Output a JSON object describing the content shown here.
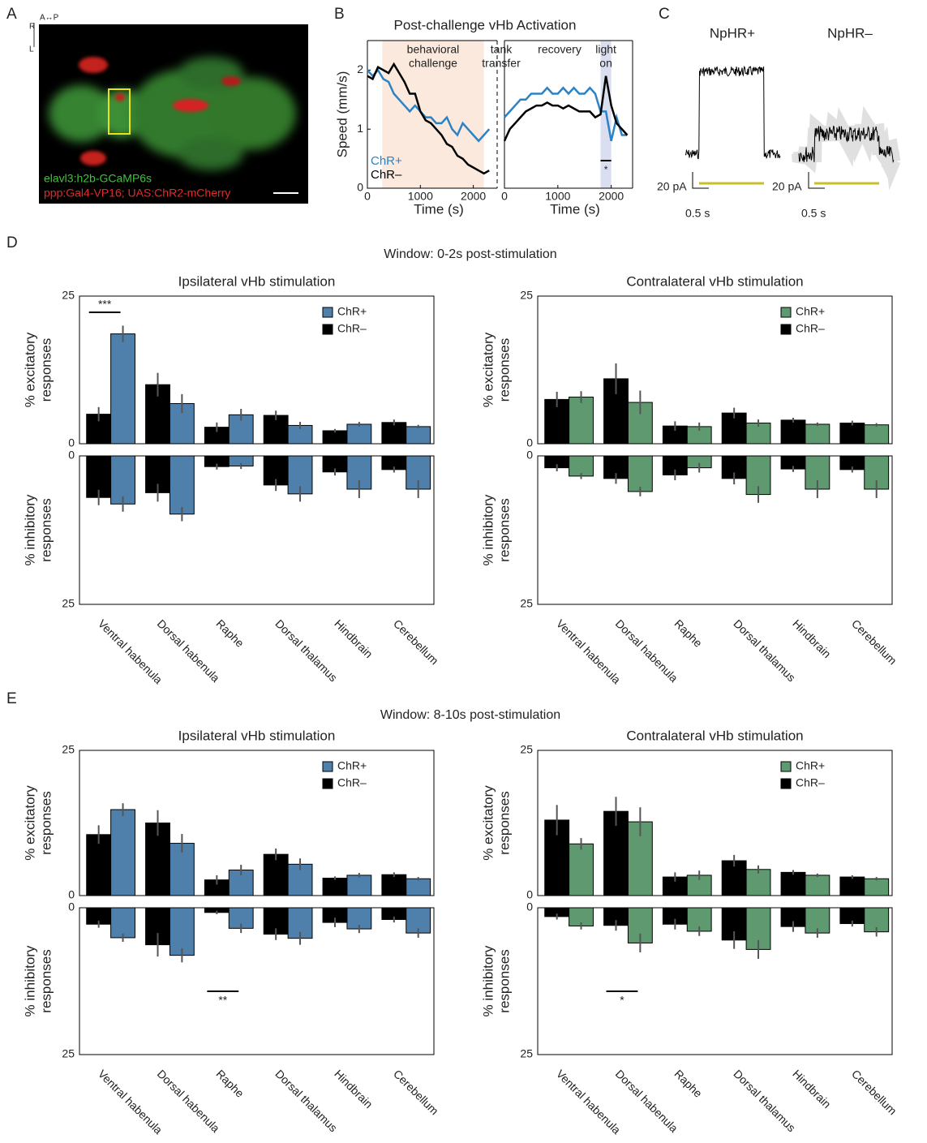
{
  "panel_labels": [
    "A",
    "B",
    "C",
    "D",
    "E"
  ],
  "image": {
    "orientation": [
      "A↔P",
      "R",
      "L"
    ],
    "labels": [
      "elavl3:h2b-GCaMP6s",
      "ppp:Gal4-VP16; UAS:ChR2-mCherry"
    ]
  },
  "traces": {
    "titles": [
      "NpHR+",
      "NpHR–"
    ],
    "scale_y": "20 pA",
    "scale_x": "0.5 s"
  },
  "windows": [
    "Window: 0-2s post-stimulation",
    "Window: 8-10s post-stimulation"
  ],
  "chart_data": [
    {
      "type": "line",
      "title": "Post-challenge vHb Activation",
      "ylabel": "Speed (mm/s)",
      "xlabel": "Time (s)",
      "xlim": [
        0,
        2450
      ],
      "xticks": [
        0,
        1000,
        2000
      ],
      "ylim": [
        0,
        2.5
      ],
      "yticks": [
        0,
        1,
        2
      ],
      "x": [
        0,
        100,
        200,
        300,
        400,
        500,
        600,
        700,
        800,
        900,
        1000,
        1100,
        1200,
        1300,
        1400,
        1500,
        1600,
        1700,
        1800,
        1900,
        2000,
        2100,
        2200,
        2300
      ],
      "series": [
        {
          "name": "ChR+",
          "color": "#2b83c6",
          "values": [
            2.0,
            1.9,
            2.0,
            1.85,
            1.8,
            1.6,
            1.5,
            1.4,
            1.3,
            1.4,
            1.3,
            1.2,
            1.2,
            1.1,
            1.1,
            1.2,
            1.0,
            0.9,
            1.1,
            1.0,
            0.9,
            0.8,
            0.9,
            1.0
          ]
        },
        {
          "name": "ChR–",
          "color": "#000000",
          "values": [
            1.9,
            1.85,
            2.05,
            2.0,
            1.95,
            2.1,
            1.95,
            1.8,
            1.6,
            1.6,
            1.3,
            1.15,
            1.1,
            1.0,
            0.9,
            0.75,
            0.7,
            0.55,
            0.5,
            0.4,
            0.35,
            0.3,
            0.25,
            0.3
          ]
        }
      ],
      "regions": [
        {
          "lines": [
            "behavioral",
            "challenge"
          ],
          "xlim": [
            280,
            2200
          ],
          "color": "#fce9dd"
        }
      ]
    },
    {
      "type": "line",
      "xlabel": "Time (s)",
      "xlim": [
        0,
        2400
      ],
      "xticks": [
        0,
        1000,
        2000
      ],
      "ylim": [
        0,
        2.5
      ],
      "x": [
        0,
        100,
        200,
        300,
        400,
        500,
        600,
        700,
        800,
        900,
        1000,
        1100,
        1200,
        1300,
        1400,
        1500,
        1600,
        1700,
        1800,
        1900,
        2000,
        2100,
        2200,
        2300
      ],
      "series": [
        {
          "color": "#2b83c6",
          "values": [
            1.2,
            1.3,
            1.4,
            1.5,
            1.5,
            1.6,
            1.6,
            1.6,
            1.7,
            1.6,
            1.6,
            1.7,
            1.6,
            1.7,
            1.6,
            1.6,
            1.7,
            1.6,
            1.3,
            1.3,
            0.8,
            1.2,
            0.9,
            0.9
          ]
        },
        {
          "color": "#000000",
          "values": [
            0.8,
            1.0,
            1.1,
            1.2,
            1.3,
            1.35,
            1.4,
            1.4,
            1.45,
            1.4,
            1.4,
            1.35,
            1.4,
            1.35,
            1.3,
            1.3,
            1.3,
            1.2,
            1.25,
            1.9,
            1.4,
            1.1,
            1.0,
            0.9
          ]
        }
      ],
      "annotations": [
        {
          "lines": [
            "tank",
            "transfer"
          ]
        },
        {
          "lines": [
            "recovery"
          ]
        }
      ],
      "regions": [
        {
          "lines": [
            "light",
            "on"
          ],
          "xlim": [
            1800,
            2000
          ],
          "color": "#d9def0"
        }
      ],
      "significance": [
        {
          "label": "*",
          "xlim": [
            1800,
            2000
          ]
        }
      ]
    },
    {
      "type": "bar",
      "title": "Ipsilateral vHb stimulation",
      "ylabel": [
        "% excitatory",
        "responses"
      ],
      "y2label": [
        "% inhibitory",
        "responses"
      ],
      "categories": [
        "Ventral habenula",
        "Dorsal habenula",
        "Raphe",
        "Dorsal thalamus",
        "Hindbrain",
        "Cerebellum"
      ],
      "ylim": [
        0,
        25
      ],
      "yticks": [
        0,
        25
      ],
      "y2lim": [
        0,
        25
      ],
      "y2ticks": [
        0,
        25
      ],
      "series": [
        {
          "name": "ChR+",
          "color": "#4f80ab",
          "values": [
            18.6,
            6.8,
            4.9,
            3.1,
            3.3,
            2.9
          ],
          "errors": [
            1.4,
            1.6,
            1.0,
            0.6,
            0.4,
            0.3
          ],
          "inhibitory_values": [
            8.1,
            9.8,
            1.7,
            6.4,
            5.6,
            5.6
          ],
          "inhibitory_errors": [
            1.3,
            1.2,
            0.5,
            1.3,
            1.5,
            1.5
          ]
        },
        {
          "name": "ChR–",
          "color": "#000000",
          "values": [
            5.0,
            10.0,
            2.8,
            4.8,
            2.2,
            3.6
          ],
          "errors": [
            1.2,
            2.0,
            0.8,
            0.8,
            0.3,
            0.5
          ],
          "inhibitory_values": [
            7.0,
            6.2,
            1.8,
            4.9,
            2.7,
            2.3
          ],
          "inhibitory_errors": [
            1.3,
            1.5,
            0.5,
            1.0,
            0.6,
            0.5
          ]
        }
      ],
      "significance": [
        {
          "label": "***",
          "category": 0,
          "panel": "excitatory"
        }
      ]
    },
    {
      "type": "bar",
      "title": "Contralateral vHb stimulation",
      "ylabel": [
        "% excitatory",
        "responses"
      ],
      "y2label": [
        "% inhibitory",
        "responses"
      ],
      "categories": [
        "Ventral habenula",
        "Dorsal habenula",
        "Raphe",
        "Dorsal thalamus",
        "Hindbrain",
        "Cerebellum"
      ],
      "ylim": [
        0,
        25
      ],
      "yticks": [
        0,
        25
      ],
      "y2lim": [
        0,
        25
      ],
      "y2ticks": [
        0,
        25
      ],
      "series": [
        {
          "name": "ChR+",
          "color": "#5f9970",
          "values": [
            7.9,
            7.0,
            2.9,
            3.5,
            3.3,
            3.2
          ],
          "errors": [
            1.0,
            2.0,
            0.7,
            0.6,
            0.3,
            0.3
          ],
          "inhibitory_values": [
            3.4,
            6.0,
            2.0,
            6.5,
            5.6,
            5.6
          ],
          "inhibitory_errors": [
            0.5,
            0.8,
            0.8,
            1.4,
            1.5,
            1.5
          ]
        },
        {
          "name": "ChR–",
          "color": "#000000",
          "values": [
            7.5,
            11.0,
            3.0,
            5.2,
            4.0,
            3.5
          ],
          "errors": [
            1.3,
            2.6,
            0.8,
            0.9,
            0.4,
            0.4
          ],
          "inhibitory_values": [
            2.0,
            3.8,
            3.2,
            3.8,
            2.2,
            2.3
          ],
          "inhibitory_errors": [
            0.6,
            0.9,
            0.9,
            1.0,
            0.5,
            0.5
          ]
        }
      ]
    },
    {
      "type": "bar",
      "title": "Ipsilateral vHb stimulation",
      "ylabel": [
        "% excitatory",
        "responses"
      ],
      "y2label": [
        "% inhibitory",
        "responses"
      ],
      "categories": [
        "Ventral habenula",
        "Dorsal habenula",
        "Raphe",
        "Dorsal thalamus",
        "Hindbrain",
        "Cerebellum"
      ],
      "ylim": [
        0,
        25
      ],
      "yticks": [
        0,
        25
      ],
      "y2lim": [
        0,
        25
      ],
      "y2ticks": [
        0,
        25
      ],
      "series": [
        {
          "name": "ChR+",
          "color": "#4f80ab",
          "values": [
            14.8,
            9.0,
            4.4,
            5.4,
            3.5,
            2.9
          ],
          "errors": [
            1.1,
            1.6,
            0.9,
            1.0,
            0.4,
            0.3
          ],
          "inhibitory_values": [
            5.1,
            8.1,
            3.5,
            5.2,
            3.6,
            4.3
          ],
          "inhibitory_errors": [
            0.7,
            1.2,
            0.8,
            1.1,
            0.7,
            0.8
          ]
        },
        {
          "name": "ChR–",
          "color": "#000000",
          "values": [
            10.5,
            12.5,
            2.7,
            7.1,
            3.0,
            3.6
          ],
          "errors": [
            1.6,
            2.2,
            0.8,
            1.0,
            0.3,
            0.4
          ],
          "inhibitory_values": [
            2.8,
            6.3,
            0.8,
            4.5,
            2.5,
            2.0
          ],
          "inhibitory_errors": [
            0.6,
            2.0,
            0.3,
            1.0,
            0.8,
            0.5
          ]
        }
      ],
      "significance": [
        {
          "label": "**",
          "category": 2,
          "panel": "inhibitory"
        }
      ]
    },
    {
      "type": "bar",
      "title": "Contralateral vHb stimulation",
      "ylabel": [
        "% excitatory",
        "responses"
      ],
      "y2label": [
        "% inhibitory",
        "responses"
      ],
      "categories": [
        "Ventral habenula",
        "Dorsal habenula",
        "Raphe",
        "Dorsal thalamus",
        "Hindbrain",
        "Cerebellum"
      ],
      "ylim": [
        0,
        25
      ],
      "yticks": [
        0,
        25
      ],
      "y2lim": [
        0,
        25
      ],
      "y2ticks": [
        0,
        25
      ],
      "series": [
        {
          "name": "ChR+",
          "color": "#5f9970",
          "values": [
            8.9,
            12.7,
            3.5,
            4.5,
            3.5,
            2.9
          ],
          "errors": [
            1.0,
            2.5,
            0.8,
            0.7,
            0.3,
            0.3
          ],
          "inhibitory_values": [
            3.1,
            6.0,
            4.0,
            7.1,
            4.3,
            4.1
          ],
          "inhibitory_errors": [
            0.6,
            1.6,
            0.8,
            1.6,
            0.8,
            0.8
          ]
        },
        {
          "name": "ChR–",
          "color": "#000000",
          "values": [
            13.0,
            14.5,
            3.2,
            6.0,
            4.0,
            3.2
          ],
          "errors": [
            2.6,
            2.5,
            0.8,
            1.0,
            0.4,
            0.3
          ],
          "inhibitory_values": [
            1.5,
            3.0,
            2.8,
            5.5,
            3.2,
            2.7
          ],
          "inhibitory_errors": [
            0.5,
            0.9,
            0.9,
            1.5,
            0.9,
            0.5
          ]
        }
      ],
      "significance": [
        {
          "label": "*",
          "category": 1,
          "panel": "inhibitory"
        }
      ]
    }
  ]
}
